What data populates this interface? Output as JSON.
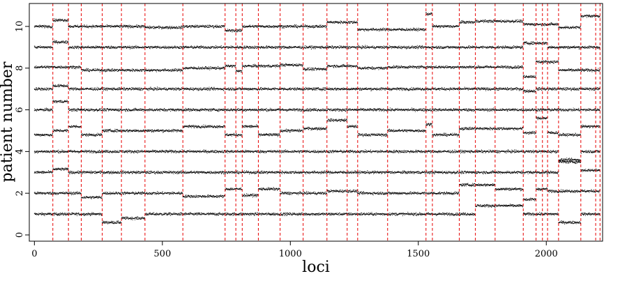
{
  "chart_data": {
    "type": "scatter",
    "title": "",
    "xlabel": "loci",
    "ylabel": "patient number",
    "xlim": [
      -20,
      2220
    ],
    "ylim": [
      -0.3,
      11.1
    ],
    "x_ticks": [
      0,
      500,
      1000,
      1500,
      2000
    ],
    "y_ticks": [
      0,
      2,
      4,
      6,
      8,
      10
    ],
    "grid": false,
    "n_loci": 2210,
    "point_color": "#000000",
    "changepoint_color": "#e60000",
    "changepoints": [
      72,
      133,
      183,
      265,
      340,
      432,
      580,
      745,
      787,
      812,
      875,
      960,
      1050,
      1143,
      1222,
      1263,
      1380,
      1530,
      1555,
      1660,
      1723,
      1800,
      1910,
      1960,
      1985,
      2005,
      2048,
      2135,
      2193,
      2210
    ],
    "series": [
      {
        "patient": 1,
        "base": 1.0,
        "segments": [
          {
            "x": [
              0,
              265
            ],
            "y": 1.0
          },
          {
            "x": [
              265,
              340
            ],
            "y": 0.6
          },
          {
            "x": [
              340,
              432
            ],
            "y": 0.8
          },
          {
            "x": [
              432,
              1723
            ],
            "y": 1.0
          },
          {
            "x": [
              1723,
              1910
            ],
            "y": 1.4
          },
          {
            "x": [
              1910,
              2048
            ],
            "y": 1.0
          },
          {
            "x": [
              2048,
              2135
            ],
            "y": 0.6
          },
          {
            "x": [
              2135,
              2210
            ],
            "y": 1.0
          }
        ]
      },
      {
        "patient": 2,
        "base": 2.0,
        "segments": [
          {
            "x": [
              0,
              183
            ],
            "y": 2.0
          },
          {
            "x": [
              183,
              265
            ],
            "y": 1.8
          },
          {
            "x": [
              265,
              580
            ],
            "y": 2.0
          },
          {
            "x": [
              580,
              745
            ],
            "y": 1.85
          },
          {
            "x": [
              745,
              812
            ],
            "y": 2.2
          },
          {
            "x": [
              812,
              875
            ],
            "y": 1.9
          },
          {
            "x": [
              875,
              960
            ],
            "y": 2.2
          },
          {
            "x": [
              960,
              1143
            ],
            "y": 2.0
          },
          {
            "x": [
              1143,
              1263
            ],
            "y": 2.1
          },
          {
            "x": [
              1263,
              1660
            ],
            "y": 2.0
          },
          {
            "x": [
              1660,
              1800
            ],
            "y": 2.4
          },
          {
            "x": [
              1800,
              1910
            ],
            "y": 2.2
          },
          {
            "x": [
              1910,
              1960
            ],
            "y": 1.7
          },
          {
            "x": [
              1960,
              2005
            ],
            "y": 2.2
          },
          {
            "x": [
              2005,
              2210
            ],
            "y": 2.1
          }
        ]
      },
      {
        "patient": 3,
        "base": 3.0,
        "segments": [
          {
            "x": [
              0,
              72
            ],
            "y": 3.0
          },
          {
            "x": [
              72,
              133
            ],
            "y": 3.15
          },
          {
            "x": [
              133,
              580
            ],
            "y": 3.0
          },
          {
            "x": [
              580,
              1530
            ],
            "y": 3.0
          },
          {
            "x": [
              1530,
              1910
            ],
            "y": 3.0
          },
          {
            "x": [
              1910,
              2048
            ],
            "y": 3.0
          },
          {
            "x": [
              2048,
              2135
            ],
            "y": 3.5
          },
          {
            "x": [
              2135,
              2210
            ],
            "y": 3.1
          }
        ]
      },
      {
        "patient": 4,
        "base": 4.0,
        "segments": [
          {
            "x": [
              0,
              2048
            ],
            "y": 4.0
          },
          {
            "x": [
              2048,
              2135
            ],
            "y": 3.6
          },
          {
            "x": [
              2135,
              2210
            ],
            "y": 4.0
          }
        ]
      },
      {
        "patient": 5,
        "base": 5.0,
        "segments": [
          {
            "x": [
              0,
              72
            ],
            "y": 4.8
          },
          {
            "x": [
              72,
              133
            ],
            "y": 5.0
          },
          {
            "x": [
              133,
              183
            ],
            "y": 5.2
          },
          {
            "x": [
              183,
              265
            ],
            "y": 4.8
          },
          {
            "x": [
              265,
              580
            ],
            "y": 5.0
          },
          {
            "x": [
              580,
              745
            ],
            "y": 5.2
          },
          {
            "x": [
              745,
              812
            ],
            "y": 4.8
          },
          {
            "x": [
              812,
              875
            ],
            "y": 5.2
          },
          {
            "x": [
              875,
              960
            ],
            "y": 4.8
          },
          {
            "x": [
              960,
              1050
            ],
            "y": 5.0
          },
          {
            "x": [
              1050,
              1143
            ],
            "y": 5.1
          },
          {
            "x": [
              1143,
              1222
            ],
            "y": 5.5
          },
          {
            "x": [
              1222,
              1263
            ],
            "y": 5.2
          },
          {
            "x": [
              1263,
              1380
            ],
            "y": 4.8
          },
          {
            "x": [
              1380,
              1530
            ],
            "y": 5.0
          },
          {
            "x": [
              1530,
              1555
            ],
            "y": 5.3
          },
          {
            "x": [
              1555,
              1660
            ],
            "y": 4.8
          },
          {
            "x": [
              1660,
              1910
            ],
            "y": 5.1
          },
          {
            "x": [
              1910,
              1960
            ],
            "y": 4.9
          },
          {
            "x": [
              1960,
              2005
            ],
            "y": 5.6
          },
          {
            "x": [
              2005,
              2048
            ],
            "y": 4.9
          },
          {
            "x": [
              2048,
              2135
            ],
            "y": 4.8
          },
          {
            "x": [
              2135,
              2210
            ],
            "y": 5.2
          }
        ]
      },
      {
        "patient": 6,
        "base": 6.0,
        "segments": [
          {
            "x": [
              0,
              72
            ],
            "y": 6.0
          },
          {
            "x": [
              72,
              133
            ],
            "y": 6.4
          },
          {
            "x": [
              133,
              1960
            ],
            "y": 6.0
          },
          {
            "x": [
              1960,
              2005
            ],
            "y": 6.0
          },
          {
            "x": [
              2005,
              2210
            ],
            "y": 6.0
          }
        ]
      },
      {
        "patient": 7,
        "base": 7.0,
        "segments": [
          {
            "x": [
              0,
              72
            ],
            "y": 7.0
          },
          {
            "x": [
              72,
              133
            ],
            "y": 7.15
          },
          {
            "x": [
              133,
              1910
            ],
            "y": 7.0
          },
          {
            "x": [
              1910,
              1960
            ],
            "y": 6.9
          },
          {
            "x": [
              1960,
              2005
            ],
            "y": 7.0
          },
          {
            "x": [
              2005,
              2210
            ],
            "y": 7.0
          }
        ]
      },
      {
        "patient": 8,
        "base": 8.0,
        "segments": [
          {
            "x": [
              0,
              183
            ],
            "y": 8.05
          },
          {
            "x": [
              183,
              580
            ],
            "y": 7.9
          },
          {
            "x": [
              580,
              745
            ],
            "y": 8.0
          },
          {
            "x": [
              745,
              787
            ],
            "y": 8.1
          },
          {
            "x": [
              787,
              812
            ],
            "y": 7.85
          },
          {
            "x": [
              812,
              960
            ],
            "y": 8.1
          },
          {
            "x": [
              960,
              1050
            ],
            "y": 8.15
          },
          {
            "x": [
              1050,
              1143
            ],
            "y": 7.95
          },
          {
            "x": [
              1143,
              1263
            ],
            "y": 8.1
          },
          {
            "x": [
              1263,
              1380
            ],
            "y": 8.0
          },
          {
            "x": [
              1380,
              1910
            ],
            "y": 8.05
          },
          {
            "x": [
              1910,
              1960
            ],
            "y": 7.6
          },
          {
            "x": [
              1960,
              2048
            ],
            "y": 8.3
          },
          {
            "x": [
              2048,
              2210
            ],
            "y": 7.9
          }
        ]
      },
      {
        "patient": 9,
        "base": 9.0,
        "segments": [
          {
            "x": [
              0,
              72
            ],
            "y": 9.0
          },
          {
            "x": [
              72,
              133
            ],
            "y": 9.25
          },
          {
            "x": [
              133,
              580
            ],
            "y": 9.0
          },
          {
            "x": [
              580,
              1910
            ],
            "y": 9.0
          },
          {
            "x": [
              1910,
              2005
            ],
            "y": 9.2
          },
          {
            "x": [
              2005,
              2210
            ],
            "y": 9.0
          }
        ]
      },
      {
        "patient": 10,
        "base": 10.0,
        "segments": [
          {
            "x": [
              0,
              72
            ],
            "y": 10.0
          },
          {
            "x": [
              72,
              133
            ],
            "y": 10.3
          },
          {
            "x": [
              133,
              432
            ],
            "y": 10.0
          },
          {
            "x": [
              432,
              580
            ],
            "y": 9.95
          },
          {
            "x": [
              580,
              745
            ],
            "y": 10.0
          },
          {
            "x": [
              745,
              812
            ],
            "y": 9.8
          },
          {
            "x": [
              812,
              1143
            ],
            "y": 10.0
          },
          {
            "x": [
              1143,
              1263
            ],
            "y": 10.2
          },
          {
            "x": [
              1263,
              1380
            ],
            "y": 9.85
          },
          {
            "x": [
              1380,
              1530
            ],
            "y": 9.85
          },
          {
            "x": [
              1530,
              1555
            ],
            "y": 10.6
          },
          {
            "x": [
              1555,
              1660
            ],
            "y": 10.0
          },
          {
            "x": [
              1660,
              1723
            ],
            "y": 10.2
          },
          {
            "x": [
              1723,
              1910
            ],
            "y": 10.25
          },
          {
            "x": [
              1910,
              2048
            ],
            "y": 10.1
          },
          {
            "x": [
              2048,
              2135
            ],
            "y": 9.95
          },
          {
            "x": [
              2135,
              2210
            ],
            "y": 10.5
          }
        ]
      }
    ]
  }
}
